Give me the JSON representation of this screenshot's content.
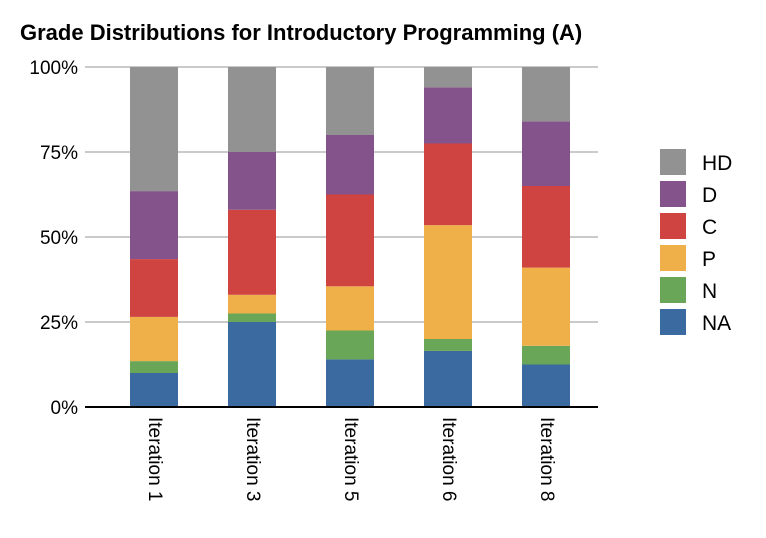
{
  "chart_data": {
    "type": "bar",
    "stacked": true,
    "title": "Grade Distributions for Introductory Programming (A)",
    "categories": [
      "Iteration 1",
      "Iteration 3",
      "Iteration 5",
      "Iteration 6",
      "Iteration 8"
    ],
    "ylim": [
      0,
      100
    ],
    "yticks": [
      {
        "value": 0,
        "label": "0%"
      },
      {
        "value": 25,
        "label": "25%"
      },
      {
        "value": 50,
        "label": "50%"
      },
      {
        "value": 75,
        "label": "75%"
      },
      {
        "value": 100,
        "label": "100%"
      }
    ],
    "grid": true,
    "legend_position": "right",
    "series": [
      {
        "name": "NA",
        "color": "#3b6aa0",
        "values": [
          10,
          25,
          14,
          16.5,
          12.5
        ]
      },
      {
        "name": "N",
        "color": "#6aa657",
        "values": [
          3.5,
          2.5,
          8.5,
          3.5,
          5.5
        ]
      },
      {
        "name": "P",
        "color": "#efb04a",
        "values": [
          13,
          5.5,
          13,
          33.5,
          23
        ]
      },
      {
        "name": "C",
        "color": "#cf4340",
        "values": [
          17,
          25,
          27,
          24,
          24
        ]
      },
      {
        "name": "D",
        "color": "#85538b",
        "values": [
          20,
          17,
          17.5,
          16.5,
          19
        ]
      },
      {
        "name": "HD",
        "color": "#929292",
        "values": [
          36.5,
          25,
          20,
          6,
          16
        ]
      }
    ]
  }
}
